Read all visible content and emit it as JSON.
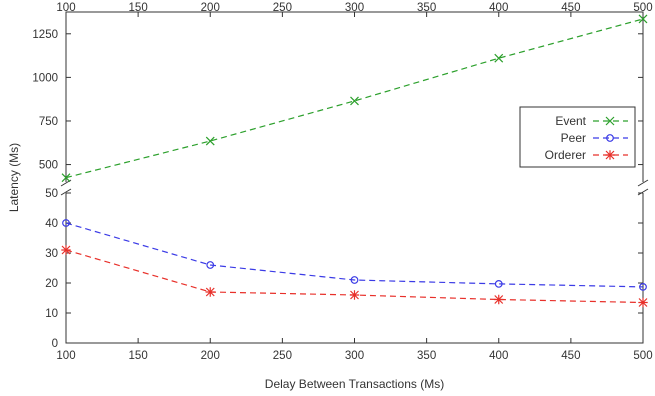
{
  "chart_data": {
    "type": "line",
    "broken_y_axis": true,
    "title": "",
    "xlabel": "Delay Between Transactions (Ms)",
    "ylabel": "Latency (Ms)",
    "xlim": [
      100,
      500
    ],
    "x_ticks": [
      100,
      150,
      200,
      250,
      300,
      350,
      400,
      450,
      500
    ],
    "x_tick_labels": [
      "100",
      "150",
      "200",
      "250",
      "300",
      "350",
      "400",
      "450",
      "500"
    ],
    "y_upper": {
      "ylim": [
        400,
        1375
      ],
      "ticks": [
        500,
        750,
        1000,
        1250
      ],
      "tick_labels": [
        "500",
        "750",
        "1000",
        "1250"
      ]
    },
    "y_lower": {
      "ylim": [
        0,
        50
      ],
      "ticks": [
        0,
        10,
        20,
        30,
        40,
        50
      ],
      "tick_labels": [
        "0",
        "10",
        "20",
        "30",
        "40",
        "50"
      ]
    },
    "legend_position": "right",
    "grid": false,
    "series": [
      {
        "name": "Event",
        "panel": "upper",
        "marker": "x",
        "color": "#2ca02c",
        "x": [
          100,
          200,
          300,
          400,
          500
        ],
        "values": [
          425,
          635,
          865,
          1110,
          1335
        ]
      },
      {
        "name": "Peer",
        "panel": "lower",
        "marker": "circle",
        "color": "#3b3be6",
        "x": [
          100,
          200,
          300,
          400,
          500
        ],
        "values": [
          40,
          26,
          21,
          19.7,
          18.7
        ]
      },
      {
        "name": "Orderer",
        "panel": "lower",
        "marker": "star",
        "color": "#e8302a",
        "x": [
          100,
          200,
          300,
          400,
          500
        ],
        "values": [
          31,
          17,
          16,
          14.5,
          13.5
        ]
      }
    ]
  }
}
